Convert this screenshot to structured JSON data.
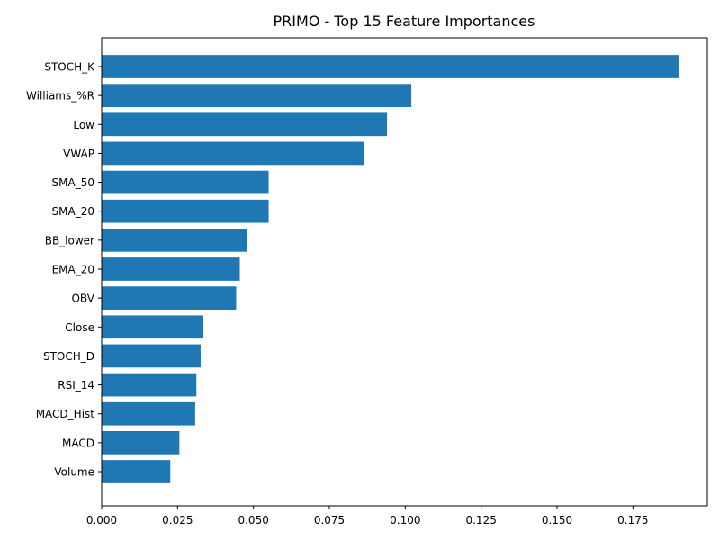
{
  "chart_data": {
    "type": "bar",
    "orientation": "horizontal",
    "title": "PRIMO - Top 15 Feature Importances",
    "xlabel": "",
    "ylabel": "",
    "categories": [
      "STOCH_K",
      "Williams_%R",
      "Low",
      "VWAP",
      "SMA_50",
      "SMA_20",
      "BB_lower",
      "EMA_20",
      "OBV",
      "Close",
      "STOCH_D",
      "RSI_14",
      "MACD_Hist",
      "MACD",
      "Volume"
    ],
    "values": [
      0.19,
      0.102,
      0.094,
      0.0865,
      0.055,
      0.055,
      0.048,
      0.0455,
      0.0443,
      0.0335,
      0.0326,
      0.0312,
      0.0308,
      0.0256,
      0.0226
    ],
    "xlim": [
      0,
      0.1995
    ],
    "x_ticks": [
      0.0,
      0.025,
      0.05,
      0.075,
      0.1,
      0.125,
      0.15,
      0.175
    ],
    "x_tick_labels": [
      "0.000",
      "0.025",
      "0.050",
      "0.075",
      "0.100",
      "0.125",
      "0.150",
      "0.175"
    ],
    "grid": false,
    "legend": "none",
    "bar_color": "#1f77b4"
  }
}
